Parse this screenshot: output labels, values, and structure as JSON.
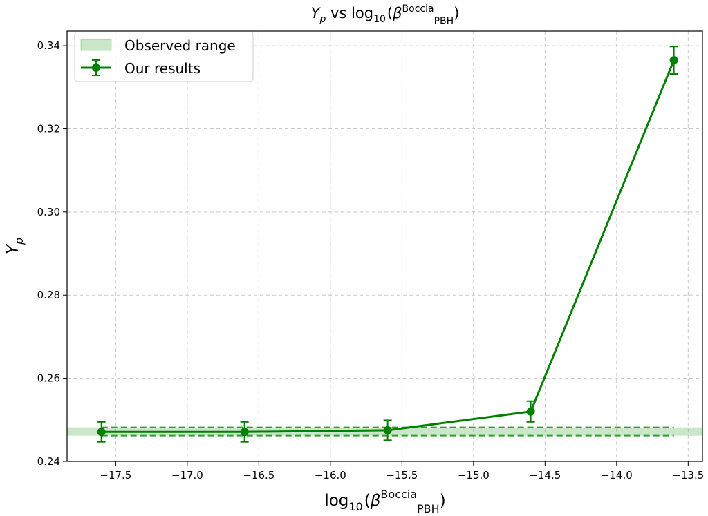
{
  "chart_data": {
    "type": "line",
    "title": {
      "base": "Y",
      "base_sub": "p",
      "mid": " vs log",
      "mid_sub": "10",
      "open": "(",
      "beta": "β",
      "beta_sup": "Boccia",
      "beta_sub": "PBH",
      "close": ")"
    },
    "xlabel": {
      "base": "log",
      "base_sub": "10",
      "open": "(",
      "beta": "β",
      "beta_sup": "Boccia",
      "beta_sub": "PBH",
      "close": ")"
    },
    "ylabel": {
      "base": "Y",
      "base_sub": "p"
    },
    "xlim": [
      -17.84,
      -13.4
    ],
    "ylim": [
      0.24,
      0.3435
    ],
    "xticks": [
      -17.5,
      -17.0,
      -16.5,
      -16.0,
      -15.5,
      -15.0,
      -14.5,
      -14.0,
      -13.5
    ],
    "xtick_labels": [
      "−17.5",
      "−17.0",
      "−16.5",
      "−16.0",
      "−15.5",
      "−15.0",
      "−14.5",
      "−14.0",
      "−13.5"
    ],
    "yticks": [
      0.24,
      0.26,
      0.28,
      0.3,
      0.32,
      0.34
    ],
    "ytick_labels": [
      "0.24",
      "0.26",
      "0.28",
      "0.30",
      "0.32",
      "0.34"
    ],
    "grid": true,
    "legend_position": "top-left",
    "observed_range": {
      "name": "Observed range",
      "y_low": 0.2462,
      "y_high": 0.2482,
      "color": "#2ca02c"
    },
    "series": [
      {
        "name": "Our results",
        "color": "#008000",
        "x": [
          -17.6,
          -16.6,
          -15.6,
          -14.6,
          -13.6
        ],
        "y": [
          0.2471,
          0.2471,
          0.2475,
          0.252,
          0.3365
        ],
        "yerr": [
          0.0024,
          0.0024,
          0.0024,
          0.0025,
          0.0033
        ]
      }
    ]
  }
}
